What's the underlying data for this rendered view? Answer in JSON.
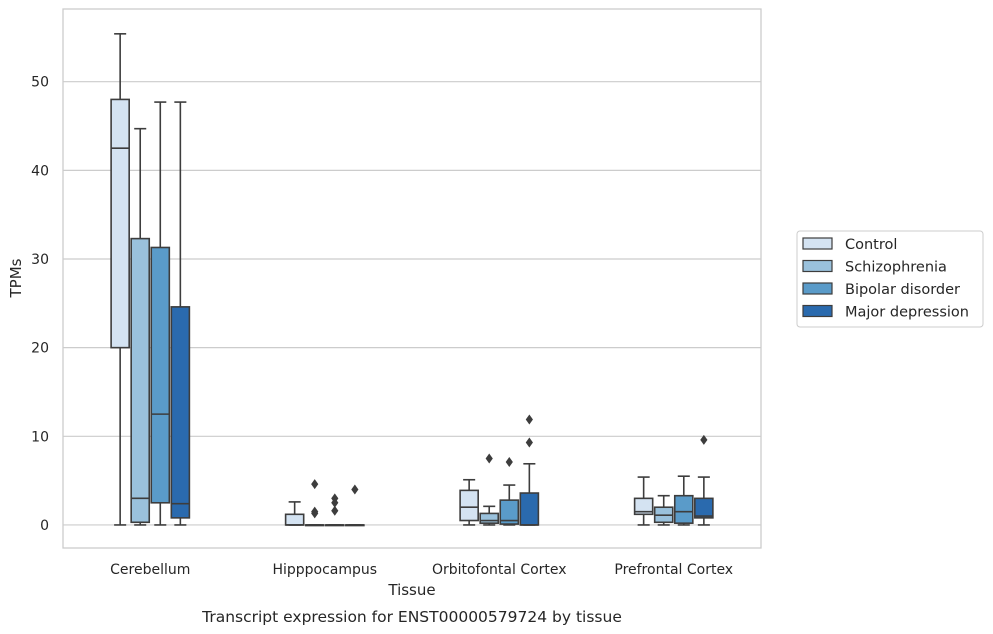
{
  "caption": "Transcript expression for ENST00000579724 by tissue",
  "chart_data": {
    "type": "box",
    "xlabel": "Tissue",
    "ylabel": "TPMs",
    "ylim": [
      -2.6,
      58.2
    ],
    "yticks": [
      0,
      10,
      20,
      30,
      40,
      50
    ],
    "grid": "horizontal",
    "legend_position": "right",
    "categories": [
      "Cerebellum",
      "Hipppocampus",
      "Orbitofontal Cortex",
      "Prefrontal Cortex"
    ],
    "series": [
      {
        "name": "Control",
        "color": "#d4e3f2",
        "boxes": [
          {
            "whisker_low": 0,
            "q1": 20.0,
            "median": 42.5,
            "q3": 48.0,
            "whisker_high": 55.4,
            "outliers": []
          },
          {
            "whisker_low": 0,
            "q1": 0,
            "median": 0,
            "q3": 1.2,
            "whisker_high": 2.6,
            "outliers": []
          },
          {
            "whisker_low": 0,
            "q1": 0.5,
            "median": 2.0,
            "q3": 3.9,
            "whisker_high": 5.1,
            "outliers": []
          },
          {
            "whisker_low": 0,
            "q1": 1.2,
            "median": 1.5,
            "q3": 3.0,
            "whisker_high": 5.4,
            "outliers": []
          }
        ]
      },
      {
        "name": "Schizophrenia",
        "color": "#9ac1dc",
        "boxes": [
          {
            "whisker_low": 0,
            "q1": 0.3,
            "median": 3.0,
            "q3": 32.3,
            "whisker_high": 44.7,
            "outliers": []
          },
          {
            "whisker_low": 0,
            "q1": 0,
            "median": 0,
            "q3": 0,
            "whisker_high": 0,
            "outliers": [
              4.6,
              1.5,
              1.3
            ]
          },
          {
            "whisker_low": 0,
            "q1": 0.2,
            "median": 0.5,
            "q3": 1.3,
            "whisker_high": 2.1,
            "outliers": [
              7.5
            ]
          },
          {
            "whisker_low": 0,
            "q1": 0.3,
            "median": 1.1,
            "q3": 2.0,
            "whisker_high": 3.3,
            "outliers": []
          }
        ]
      },
      {
        "name": "Bipolar disorder",
        "color": "#5a9bc9",
        "boxes": [
          {
            "whisker_low": 0,
            "q1": 2.5,
            "median": 12.5,
            "q3": 31.3,
            "whisker_high": 47.7,
            "outliers": []
          },
          {
            "whisker_low": 0,
            "q1": 0,
            "median": 0,
            "q3": 0,
            "whisker_high": 0,
            "outliers": [
              3.0,
              2.5,
              1.6
            ]
          },
          {
            "whisker_low": 0,
            "q1": 0.1,
            "median": 0.5,
            "q3": 2.8,
            "whisker_high": 4.5,
            "outliers": [
              7.1
            ]
          },
          {
            "whisker_low": 0,
            "q1": 0.2,
            "median": 1.5,
            "q3": 3.3,
            "whisker_high": 5.5,
            "outliers": []
          }
        ]
      },
      {
        "name": "Major depression",
        "color": "#2a6aae",
        "boxes": [
          {
            "whisker_low": 0,
            "q1": 0.8,
            "median": 2.4,
            "q3": 24.6,
            "whisker_high": 47.7,
            "outliers": []
          },
          {
            "whisker_low": 0,
            "q1": 0,
            "median": 0,
            "q3": 0,
            "whisker_high": 0,
            "outliers": [
              4.0
            ]
          },
          {
            "whisker_low": 0,
            "q1": 0,
            "median": 0,
            "q3": 3.6,
            "whisker_high": 6.9,
            "outliers": [
              11.9,
              9.3
            ]
          },
          {
            "whisker_low": 0,
            "q1": 0.8,
            "median": 1.0,
            "q3": 3.0,
            "whisker_high": 5.4,
            "outliers": [
              9.6
            ]
          }
        ]
      }
    ]
  }
}
